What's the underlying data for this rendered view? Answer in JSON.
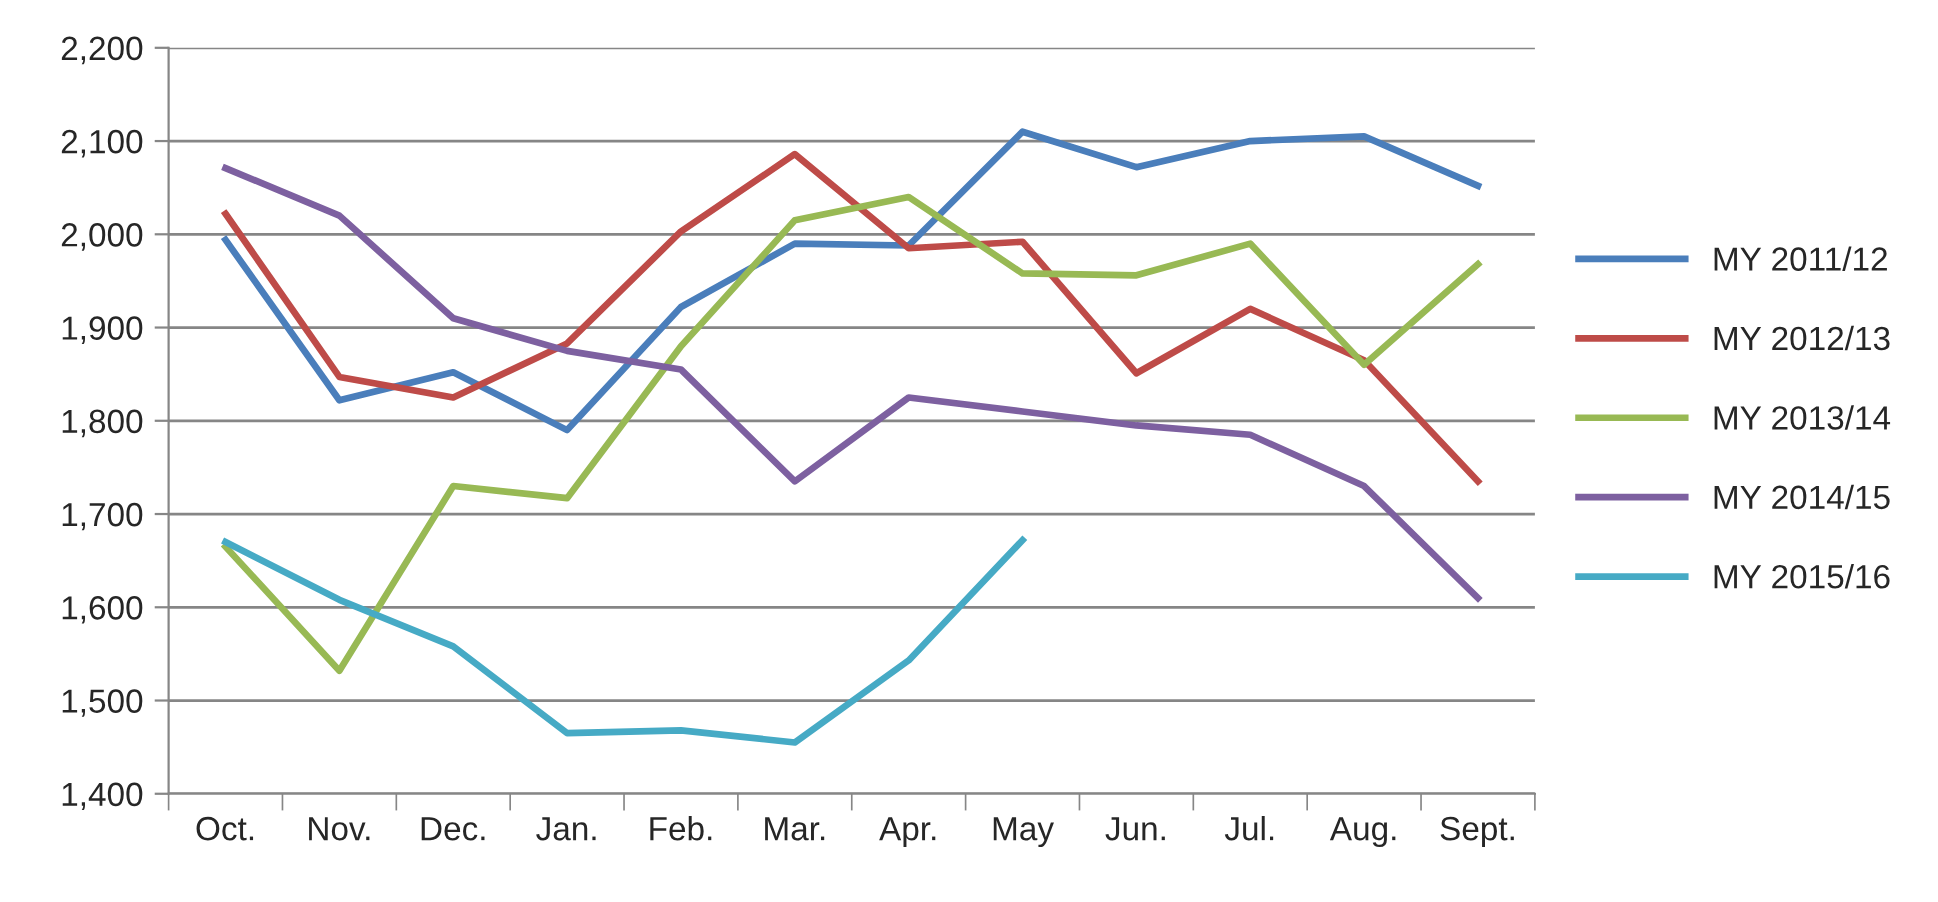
{
  "chart_data": {
    "type": "line",
    "categories": [
      "Oct.",
      "Nov.",
      "Dec.",
      "Jan.",
      "Feb.",
      "Mar.",
      "Apr.",
      "May",
      "Jun.",
      "Jul.",
      "Aug.",
      "Sept."
    ],
    "series": [
      {
        "name": "MY 2011/12",
        "color": "#4a7ebb",
        "values": [
          1994,
          1822,
          1852,
          1790,
          1922,
          1990,
          1988,
          2110,
          2072,
          2100,
          2105,
          2052
        ]
      },
      {
        "name": "MY 2012/13",
        "color": "#be4b48",
        "values": [
          2022,
          1847,
          1825,
          1883,
          2003,
          2086,
          1985,
          1992,
          1851,
          1920,
          1865,
          1735
        ]
      },
      {
        "name": "MY 2013/14",
        "color": "#98b954",
        "values": [
          1665,
          1532,
          1730,
          1717,
          1880,
          2015,
          2040,
          1958,
          1956,
          1990,
          1860,
          1968
        ]
      },
      {
        "name": "MY 2014/15",
        "color": "#7d60a0",
        "values": [
          2071,
          2020,
          1910,
          1875,
          1855,
          1735,
          1825,
          1810,
          1795,
          1785,
          1730,
          1610
        ]
      },
      {
        "name": "MY 2015/16",
        "color": "#46aac5",
        "values": [
          1670,
          1608,
          1558,
          1465,
          1468,
          1455,
          1543,
          1672,
          null,
          null,
          null,
          null
        ]
      }
    ],
    "ylim": [
      1400,
      2200
    ],
    "yticks": [
      {
        "value": 1400,
        "label": "1,400"
      },
      {
        "value": 1500,
        "label": "1,500"
      },
      {
        "value": 1600,
        "label": "1,600"
      },
      {
        "value": 1700,
        "label": "1,700"
      },
      {
        "value": 1800,
        "label": "1,800"
      },
      {
        "value": 1900,
        "label": "1,900"
      },
      {
        "value": 2000,
        "label": "2,000"
      },
      {
        "value": 2100,
        "label": "2,100"
      },
      {
        "value": 2200,
        "label": "2,200"
      }
    ],
    "grid": "y",
    "legend": "right",
    "marker": "none",
    "line_style": "solid"
  }
}
